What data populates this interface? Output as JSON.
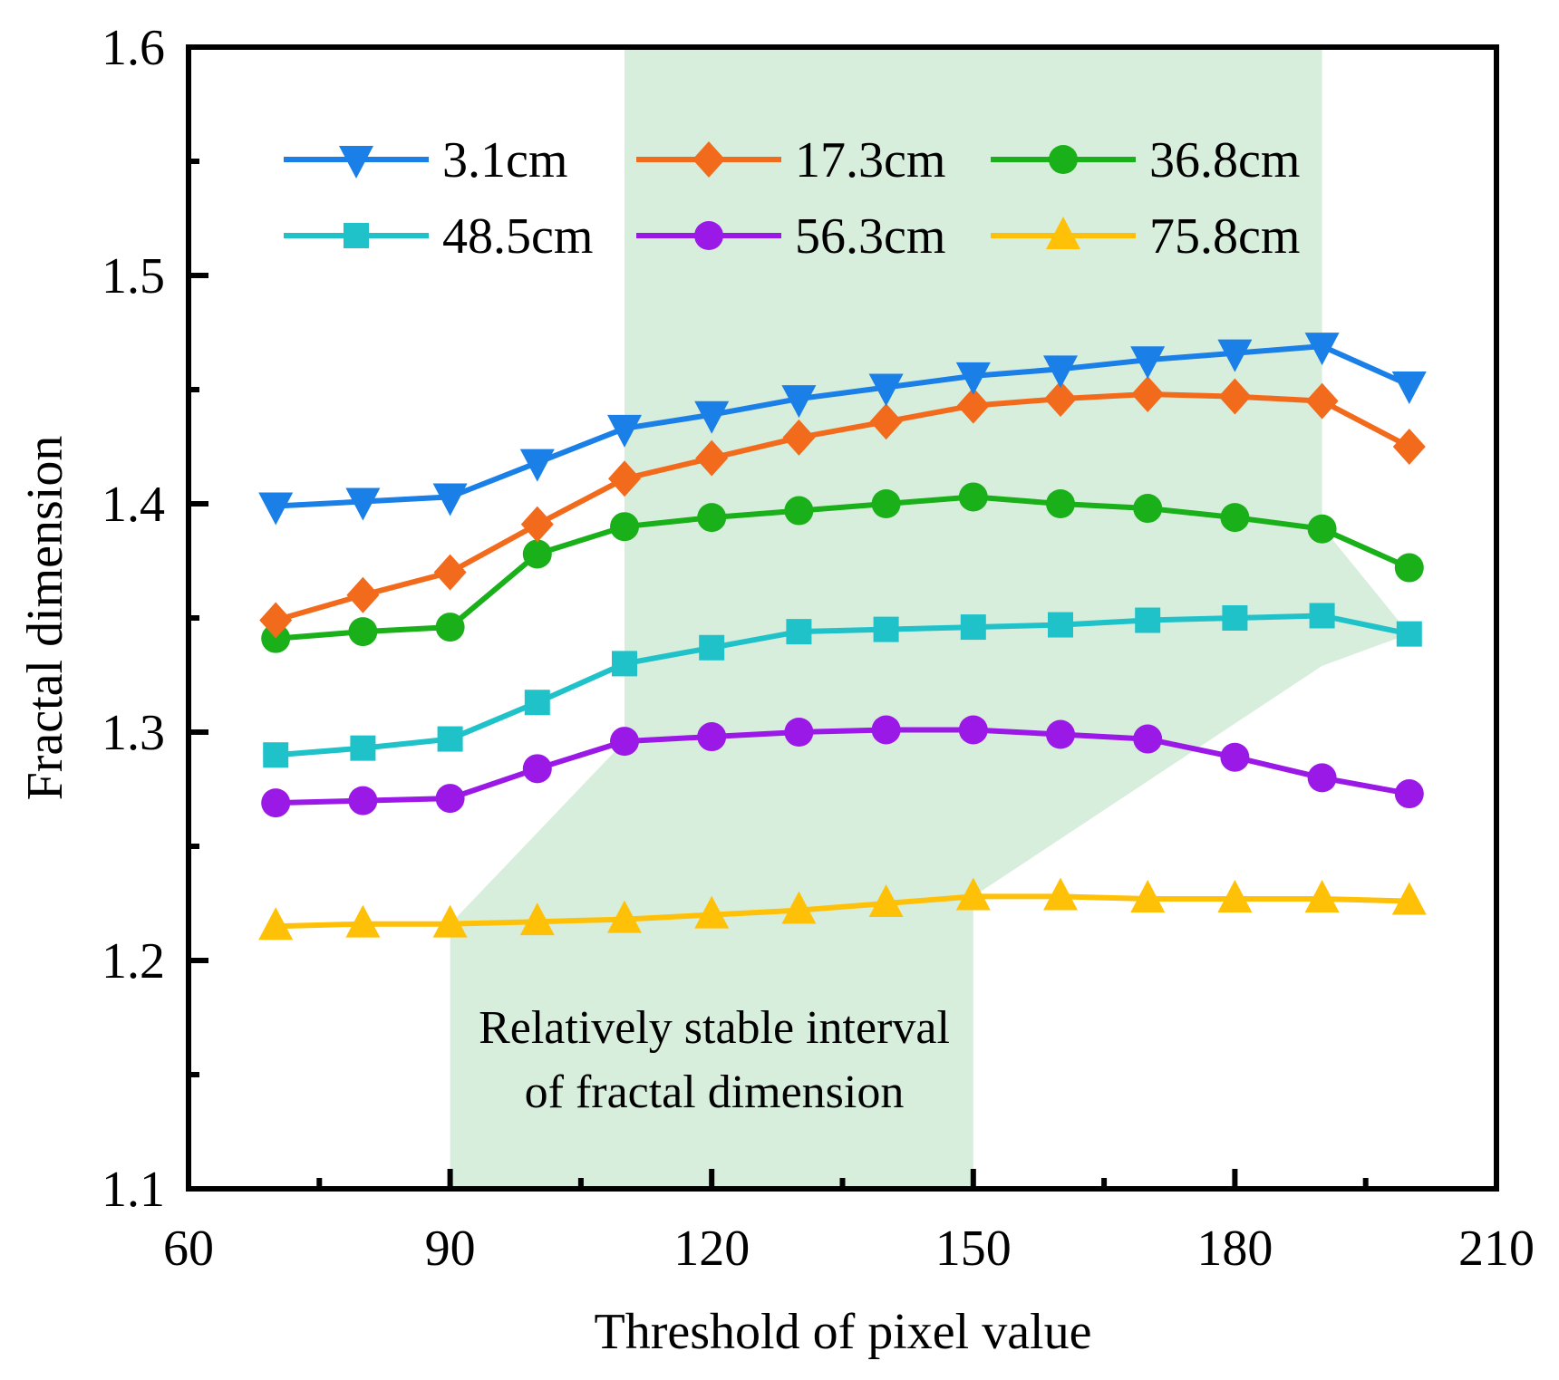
{
  "chart_data": {
    "type": "line",
    "xlabel": "Threshold of pixel value",
    "ylabel": "Fractal dimension",
    "xlim": [
      60,
      210
    ],
    "ylim": [
      1.1,
      1.6
    ],
    "xticks": [
      "60",
      "90",
      "120",
      "150",
      "180",
      "210"
    ],
    "yticks": [
      "1.1",
      "1.2",
      "1.3",
      "1.4",
      "1.5",
      "1.6"
    ],
    "grid": false,
    "legend_placement": "top",
    "annotation": {
      "line1": "Relatively stable interval",
      "line2": "of fractal dimension"
    },
    "x": [
      70,
      80,
      90,
      100,
      110,
      120,
      130,
      140,
      150,
      160,
      170,
      180,
      190,
      200
    ],
    "series": [
      {
        "name": "3.1cm",
        "color": "#1a7fe6",
        "marker": "triangle-down",
        "values": [
          1.399,
          1.401,
          1.403,
          1.418,
          1.433,
          1.439,
          1.446,
          1.451,
          1.456,
          1.459,
          1.463,
          1.466,
          1.469,
          1.452
        ]
      },
      {
        "name": "17.3cm",
        "color": "#f26b1d",
        "marker": "diamond",
        "values": [
          1.349,
          1.36,
          1.37,
          1.391,
          1.411,
          1.42,
          1.429,
          1.436,
          1.443,
          1.446,
          1.448,
          1.447,
          1.445,
          1.425
        ]
      },
      {
        "name": "36.8cm",
        "color": "#19b019",
        "marker": "circle",
        "values": [
          1.341,
          1.344,
          1.346,
          1.378,
          1.39,
          1.394,
          1.397,
          1.4,
          1.403,
          1.4,
          1.398,
          1.394,
          1.389,
          1.372
        ]
      },
      {
        "name": "48.5cm",
        "color": "#1fc2c9",
        "marker": "square",
        "values": [
          1.29,
          1.293,
          1.297,
          1.313,
          1.33,
          1.337,
          1.344,
          1.345,
          1.346,
          1.347,
          1.349,
          1.35,
          1.351,
          1.343
        ]
      },
      {
        "name": "56.3cm",
        "color": "#9b19e6",
        "marker": "circle",
        "values": [
          1.269,
          1.27,
          1.271,
          1.284,
          1.296,
          1.298,
          1.3,
          1.301,
          1.301,
          1.299,
          1.297,
          1.289,
          1.28,
          1.273
        ]
      },
      {
        "name": "75.8cm",
        "color": "#ffc107",
        "marker": "triangle-up",
        "values": [
          1.215,
          1.216,
          1.216,
          1.217,
          1.218,
          1.22,
          1.222,
          1.225,
          1.228,
          1.228,
          1.227,
          1.227,
          1.227,
          1.226
        ]
      }
    ],
    "shaded_region_color": "#d8eedd"
  }
}
